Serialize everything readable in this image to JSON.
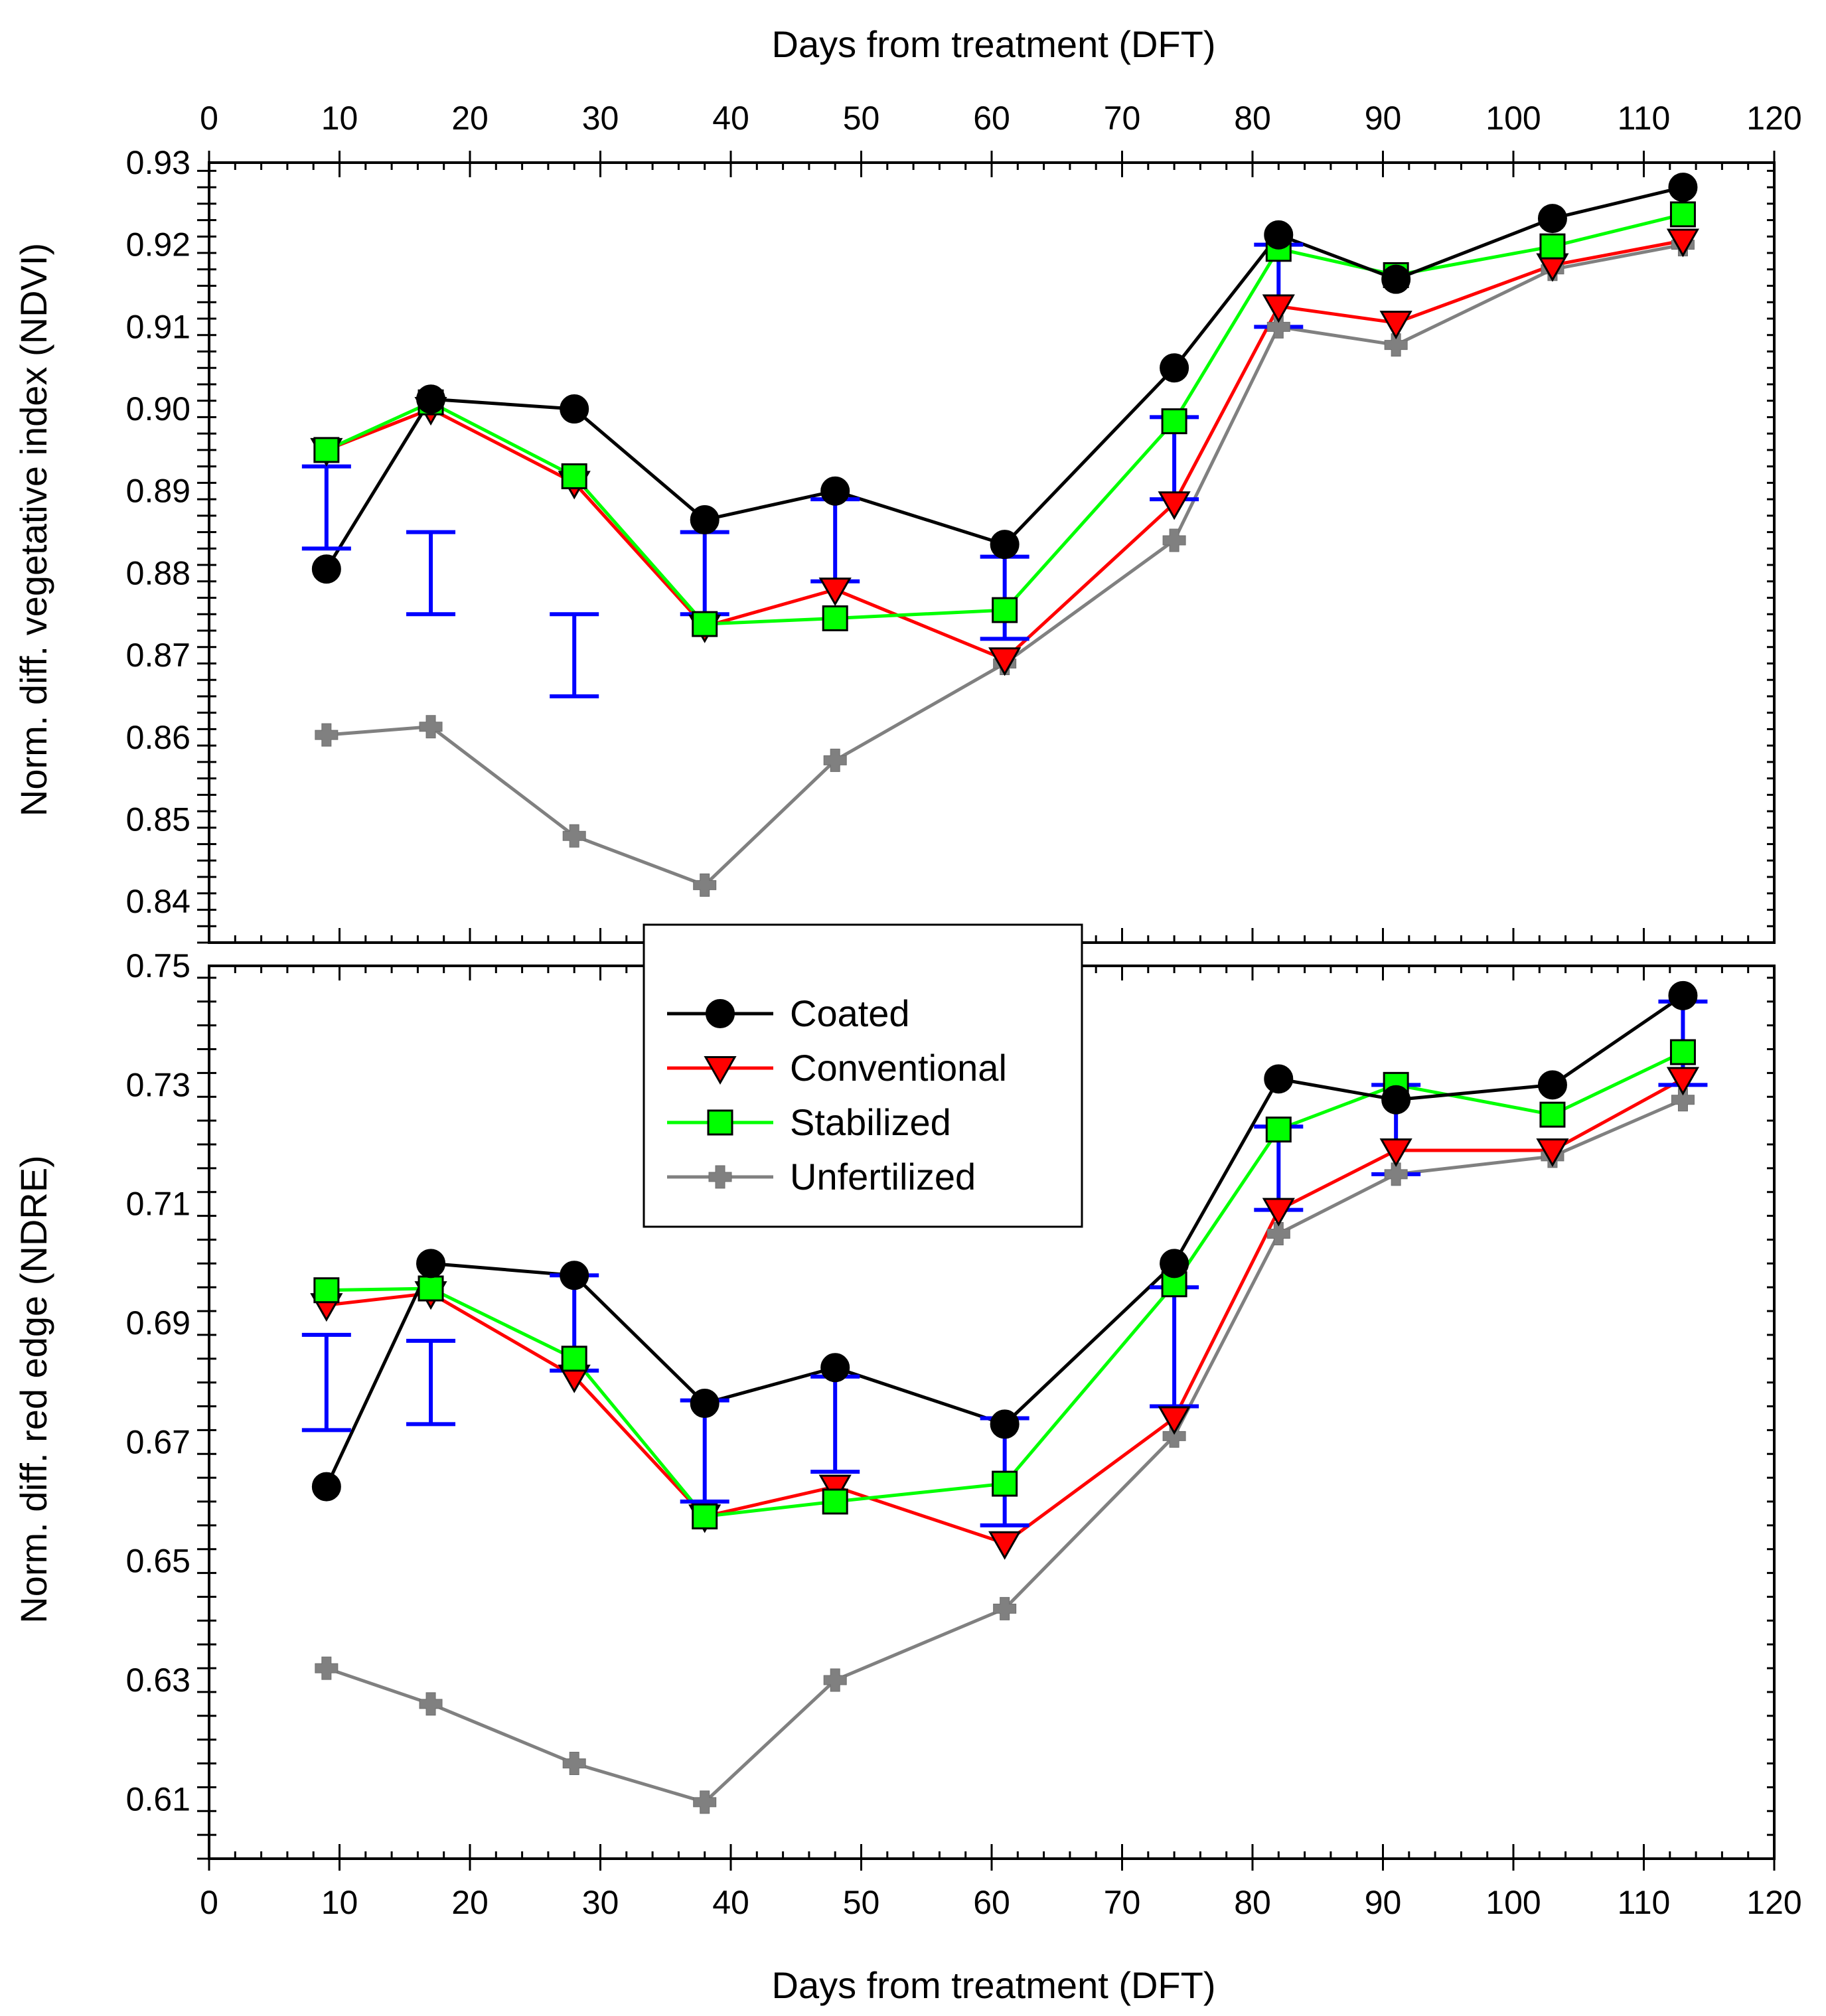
{
  "chart_data": {
    "type": "line",
    "x_axis": {
      "label_top": "Days from treatment (DFT)",
      "label_bottom": "Days from treatment (DFT)",
      "range": [
        0,
        120
      ],
      "ticks": [
        "0",
        "10",
        "20",
        "30",
        "40",
        "50",
        "60",
        "70",
        "80",
        "90",
        "100",
        "110",
        "120"
      ]
    },
    "x": [
      9,
      17,
      28,
      38,
      48,
      61,
      74,
      82,
      91,
      103,
      113
    ],
    "legend": [
      {
        "name": "Coated",
        "color": "#000000",
        "marker": "circle"
      },
      {
        "name": "Conventional",
        "color": "#ff0000",
        "marker": "triangle-down"
      },
      {
        "name": "Stabilized",
        "color": "#00ff00",
        "marker": "square"
      },
      {
        "name": "Unfertilized",
        "color": "#808080",
        "marker": "plus"
      }
    ],
    "panels": [
      {
        "id": "ndvi",
        "ylabel": "Norm. diff. vegetative index (NDVI)",
        "ylim": [
          0.835,
          0.93
        ],
        "yticks": [
          "0.84",
          "0.85",
          "0.86",
          "0.87",
          "0.88",
          "0.89",
          "0.90",
          "0.91",
          "0.92",
          "0.93"
        ],
        "series": [
          {
            "name": "Coated",
            "values": [
              0.8805,
              0.9012,
              0.9,
              0.8865,
              0.89,
              0.8835,
              0.905,
              0.9212,
              0.9158,
              0.9232,
              0.927
            ]
          },
          {
            "name": "Conventional",
            "values": [
              0.895,
              0.9,
              0.891,
              0.8735,
              0.878,
              0.8695,
              0.8885,
              0.9125,
              0.9105,
              0.9175,
              0.9205
            ]
          },
          {
            "name": "Stabilized",
            "values": [
              0.895,
              0.9008,
              0.8918,
              0.8738,
              0.8745,
              0.8755,
              0.8985,
              0.9195,
              0.9163,
              0.9198,
              0.9237
            ]
          },
          {
            "name": "Unfertilized",
            "values": [
              0.8603,
              0.8613,
              0.848,
              0.842,
              0.8572,
              0.869,
              0.884,
              0.91,
              0.9078,
              0.917,
              0.92
            ]
          }
        ],
        "error_bars": [
          {
            "x": 9,
            "low": 0.883,
            "high": 0.893
          },
          {
            "x": 17,
            "low": 0.875,
            "high": 0.885
          },
          {
            "x": 28,
            "low": 0.865,
            "high": 0.875
          },
          {
            "x": 38,
            "low": 0.875,
            "high": 0.885
          },
          {
            "x": 48,
            "low": 0.879,
            "high": 0.889
          },
          {
            "x": 61,
            "low": 0.872,
            "high": 0.882
          },
          {
            "x": 74,
            "low": 0.889,
            "high": 0.899
          },
          {
            "x": 82,
            "low": 0.91,
            "high": 0.92
          }
        ]
      },
      {
        "id": "ndre",
        "ylabel": "Norm. diff. red edge (NDRE)",
        "ylim": [
          0.6,
          0.75
        ],
        "yticks": [
          "0.61",
          "0.63",
          "0.65",
          "0.67",
          "0.69",
          "0.71",
          "0.73",
          "0.75"
        ],
        "series": [
          {
            "name": "Coated",
            "values": [
              0.6625,
              0.7,
              0.698,
              0.6765,
              0.6825,
              0.673,
              0.7,
              0.731,
              0.7275,
              0.73,
              0.745
            ]
          },
          {
            "name": "Conventional",
            "values": [
              0.693,
              0.695,
              0.681,
              0.6575,
              0.6625,
              0.653,
              0.674,
              0.709,
              0.719,
              0.719,
              0.731
            ]
          },
          {
            "name": "Stabilized",
            "values": [
              0.6955,
              0.6958,
              0.684,
              0.6575,
              0.66,
              0.663,
              0.6965,
              0.7225,
              0.73,
              0.725,
              0.7355
            ]
          },
          {
            "name": "Unfertilized",
            "values": [
              0.632,
              0.626,
              0.616,
              0.6095,
              0.63,
              0.642,
              0.671,
              0.705,
              0.715,
              0.718,
              0.7275
            ]
          }
        ],
        "error_bars": [
          {
            "x": 9,
            "low": 0.672,
            "high": 0.688
          },
          {
            "x": 17,
            "low": 0.673,
            "high": 0.687
          },
          {
            "x": 28,
            "low": 0.682,
            "high": 0.698
          },
          {
            "x": 38,
            "low": 0.66,
            "high": 0.677
          },
          {
            "x": 48,
            "low": 0.665,
            "high": 0.681
          },
          {
            "x": 61,
            "low": 0.656,
            "high": 0.674
          },
          {
            "x": 74,
            "low": 0.676,
            "high": 0.696
          },
          {
            "x": 82,
            "low": 0.709,
            "high": 0.723
          },
          {
            "x": 91,
            "low": 0.715,
            "high": 0.73
          },
          {
            "x": 113,
            "low": 0.73,
            "high": 0.744
          }
        ]
      }
    ]
  }
}
